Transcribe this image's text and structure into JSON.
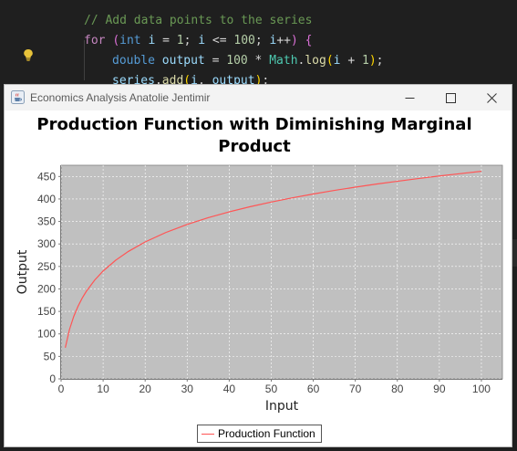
{
  "editor": {
    "lines": [
      {
        "indent": 1,
        "tokens": [
          {
            "c": "tok-comment",
            "t": "// Add data points to the series"
          }
        ]
      },
      {
        "indent": 1,
        "tokens": [
          {
            "c": "tok-keyword",
            "t": "for"
          },
          {
            "c": "tok-punc",
            "t": " "
          },
          {
            "c": "tok-brace",
            "t": "("
          },
          {
            "c": "tok-type",
            "t": "int"
          },
          {
            "c": "tok-punc",
            "t": " "
          },
          {
            "c": "tok-var",
            "t": "i"
          },
          {
            "c": "tok-punc",
            "t": " = "
          },
          {
            "c": "tok-num",
            "t": "1"
          },
          {
            "c": "tok-punc",
            "t": "; "
          },
          {
            "c": "tok-var",
            "t": "i"
          },
          {
            "c": "tok-punc",
            "t": " <= "
          },
          {
            "c": "tok-num",
            "t": "100"
          },
          {
            "c": "tok-punc",
            "t": "; "
          },
          {
            "c": "tok-var",
            "t": "i"
          },
          {
            "c": "tok-punc",
            "t": "++"
          },
          {
            "c": "tok-brace",
            "t": ")"
          },
          {
            "c": "tok-punc",
            "t": " "
          },
          {
            "c": "tok-brace",
            "t": "{"
          }
        ]
      },
      {
        "indent": 2,
        "tokens": [
          {
            "c": "tok-type",
            "t": "double"
          },
          {
            "c": "tok-punc",
            "t": " "
          },
          {
            "c": "tok-var",
            "t": "output"
          },
          {
            "c": "tok-punc",
            "t": " = "
          },
          {
            "c": "tok-num",
            "t": "100"
          },
          {
            "c": "tok-punc",
            "t": " * "
          },
          {
            "c": "tok-class",
            "t": "Math"
          },
          {
            "c": "tok-punc",
            "t": "."
          },
          {
            "c": "tok-fn",
            "t": "log"
          },
          {
            "c": "tok-paren",
            "t": "("
          },
          {
            "c": "tok-var",
            "t": "i"
          },
          {
            "c": "tok-punc",
            "t": " + "
          },
          {
            "c": "tok-num",
            "t": "1"
          },
          {
            "c": "tok-paren",
            "t": ")"
          },
          {
            "c": "tok-punc",
            "t": ";"
          }
        ]
      },
      {
        "indent": 2,
        "tokens": [
          {
            "c": "tok-var",
            "t": "series"
          },
          {
            "c": "tok-punc",
            "t": "."
          },
          {
            "c": "tok-fn",
            "t": "add"
          },
          {
            "c": "tok-paren",
            "t": "("
          },
          {
            "c": "tok-var",
            "t": "i"
          },
          {
            "c": "tok-punc",
            "t": ", "
          },
          {
            "c": "tok-var",
            "t": "output"
          },
          {
            "c": "tok-paren",
            "t": ")"
          },
          {
            "c": "tok-punc",
            "t": ";"
          }
        ]
      }
    ]
  },
  "window": {
    "title": "Economics Analysis Anatolie Jentimir",
    "app_icon": "java-cup-icon",
    "minimize_icon": "minimize-icon",
    "maximize_icon": "maximize-icon",
    "close_icon": "close-icon"
  },
  "colors": {
    "plot_background": "#c0c0c0",
    "gridline": "#ffffff",
    "series_line": "#ff5555",
    "editor_background": "#1f1f1f"
  },
  "chart_data": {
    "type": "line",
    "title": "Production Function with Diminishing Marginal Product",
    "title_lines": [
      "Production Function with Diminishing Marginal",
      "Product"
    ],
    "xlabel": "Input",
    "ylabel": "Output",
    "xlim": [
      0,
      105
    ],
    "ylim": [
      0,
      475
    ],
    "xticks": [
      0,
      10,
      20,
      30,
      40,
      50,
      60,
      70,
      80,
      90,
      100
    ],
    "yticks": [
      0,
      50,
      100,
      150,
      200,
      250,
      300,
      350,
      400,
      450
    ],
    "grid": true,
    "legend_placement": "bottom-center",
    "series": [
      {
        "name": "Production Function",
        "x": [
          1,
          2,
          3,
          4,
          5,
          6,
          8,
          10,
          13,
          16,
          20,
          25,
          30,
          35,
          40,
          45,
          50,
          55,
          60,
          65,
          70,
          75,
          80,
          85,
          90,
          95,
          100
        ],
        "y": [
          69.3,
          109.9,
          138.6,
          160.9,
          179.2,
          194.6,
          219.7,
          239.8,
          263.9,
          283.3,
          304.5,
          325.8,
          343.4,
          358.4,
          371.4,
          382.9,
          393.2,
          402.5,
          411.1,
          419.0,
          426.3,
          433.1,
          439.4,
          445.4,
          451.1,
          456.4,
          461.5
        ]
      }
    ]
  }
}
